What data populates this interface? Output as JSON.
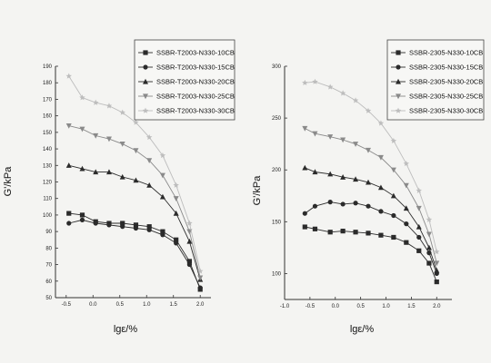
{
  "chart_data": [
    {
      "type": "line",
      "title": "",
      "xlabel": "lgε/%",
      "ylabel": "G'/kPa",
      "xlim": [
        -0.7,
        2.2
      ],
      "ylim": [
        50,
        190
      ],
      "xticks": [
        -0.5,
        0.0,
        0.5,
        1.0,
        1.5,
        2.0
      ],
      "yticks": [
        50,
        60,
        70,
        80,
        90,
        100,
        110,
        120,
        130,
        140,
        150,
        160,
        170,
        180,
        190
      ],
      "xtick_labels": [
        "-0.5",
        "0.0",
        "0.5",
        "1.0",
        "1.5",
        "2.0"
      ],
      "ytick_labels": [
        "50",
        "60",
        "70",
        "80",
        "90",
        "100",
        "110",
        "120",
        "130",
        "140",
        "150",
        "160",
        "170",
        "180",
        "190"
      ],
      "legend_position": "top-right",
      "x": [
        -0.45,
        -0.2,
        0.05,
        0.3,
        0.55,
        0.8,
        1.05,
        1.3,
        1.55,
        1.8,
        2.0
      ],
      "series": [
        {
          "name": "SSBR-T2003-N330-10CB",
          "marker": "square",
          "values": [
            101,
            100,
            96,
            95,
            95,
            94,
            93,
            90,
            85,
            72,
            55
          ]
        },
        {
          "name": "SSBR-T2003-N330-15CB",
          "marker": "circle",
          "values": [
            95,
            97,
            95,
            94,
            93,
            92,
            91,
            88,
            83,
            70,
            56
          ]
        },
        {
          "name": "SSBR-T2003-N330-20CB",
          "marker": "triangle-up",
          "values": [
            130,
            128,
            126,
            126,
            123,
            121,
            118,
            111,
            101,
            84,
            61
          ]
        },
        {
          "name": "SSBR-T2003-N330-25CB",
          "marker": "triangle-down",
          "values": [
            154,
            152,
            148,
            146,
            143,
            139,
            133,
            124,
            110,
            90,
            62
          ]
        },
        {
          "name": "SSBR-T2003-N330-30CB",
          "marker": "star",
          "values": [
            184,
            171,
            168,
            166,
            162,
            156,
            147,
            136,
            118,
            95,
            66
          ]
        }
      ]
    },
    {
      "type": "line",
      "title": "",
      "xlabel": "lgε/%",
      "ylabel": "G'/kPa",
      "xlim": [
        -1.0,
        2.3
      ],
      "ylim": [
        75,
        300
      ],
      "xticks": [
        -1.0,
        -0.5,
        0.0,
        0.5,
        1.0,
        1.5,
        2.0
      ],
      "yticks": [
        100,
        150,
        200,
        250,
        300
      ],
      "xtick_labels": [
        "-1.0",
        "-0.5",
        "0.0",
        "0.5",
        "1.0",
        "1.5",
        "2.0"
      ],
      "ytick_labels": [
        "100",
        "150",
        "200",
        "250",
        "300"
      ],
      "legend_position": "top-right",
      "x": [
        -0.6,
        -0.4,
        -0.1,
        0.15,
        0.4,
        0.65,
        0.9,
        1.15,
        1.4,
        1.65,
        1.85,
        2.0
      ],
      "series": [
        {
          "name": "SSBR-2305-N330-10CB",
          "marker": "square",
          "values": [
            145,
            143,
            140,
            141,
            140,
            139,
            137,
            135,
            130,
            122,
            110,
            92
          ]
        },
        {
          "name": "SSBR-2305-N330-15CB",
          "marker": "circle",
          "values": [
            158,
            165,
            169,
            167,
            168,
            165,
            160,
            156,
            148,
            135,
            120,
            100
          ]
        },
        {
          "name": "SSBR-2305-N330-20CB",
          "marker": "triangle-up",
          "values": [
            202,
            198,
            196,
            193,
            191,
            188,
            183,
            175,
            163,
            145,
            125,
            103
          ]
        },
        {
          "name": "SSBR-2305-N330-25CB",
          "marker": "triangle-down",
          "values": [
            240,
            235,
            232,
            229,
            225,
            219,
            212,
            200,
            185,
            163,
            138,
            110
          ]
        },
        {
          "name": "SSBR-2305-N330-30CB",
          "marker": "star",
          "values": [
            284,
            285,
            280,
            274,
            267,
            257,
            245,
            228,
            206,
            180,
            152,
            121
          ]
        }
      ]
    }
  ],
  "colors": {
    "series": [
      "#2b2b2b",
      "#2b2b2b",
      "#2b2b2b",
      "#8a8a8a",
      "#bdbdbd"
    ],
    "axes": "#333333",
    "background": "#f4f4f2"
  }
}
